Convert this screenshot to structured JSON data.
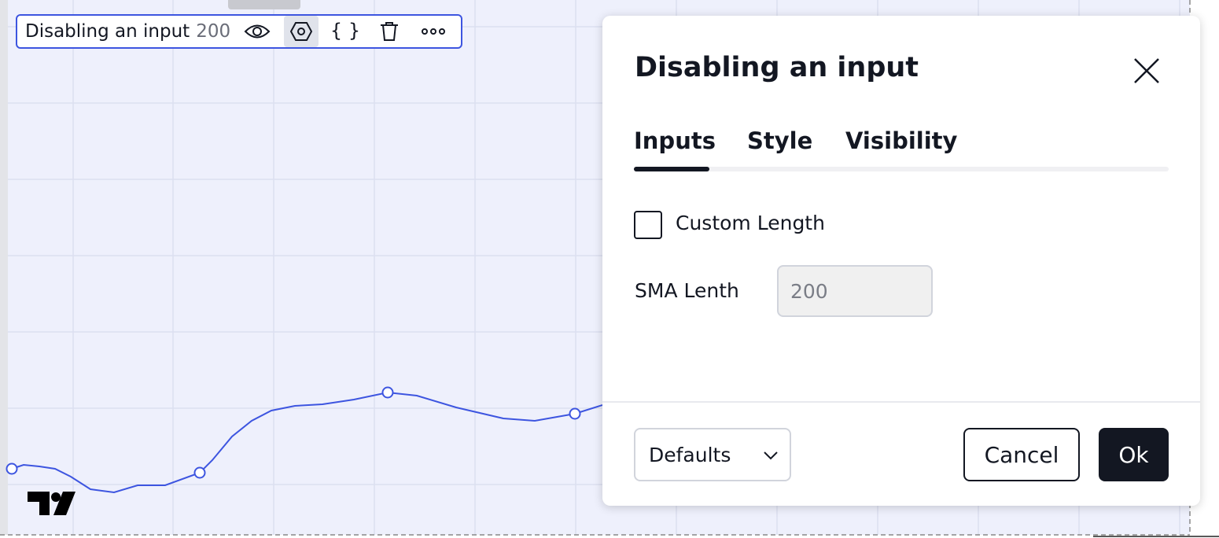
{
  "legend": {
    "title": "Disabling an input",
    "value": "200"
  },
  "dialog": {
    "title": "Disabling an input",
    "tabs": [
      "Inputs",
      "Style",
      "Visibility"
    ],
    "checkbox_label": "Custom Length",
    "field": {
      "label": "SMA Lenth",
      "value": "200"
    },
    "footer": {
      "select": "Defaults",
      "cancel": "Cancel",
      "ok": "Ok"
    }
  }
}
